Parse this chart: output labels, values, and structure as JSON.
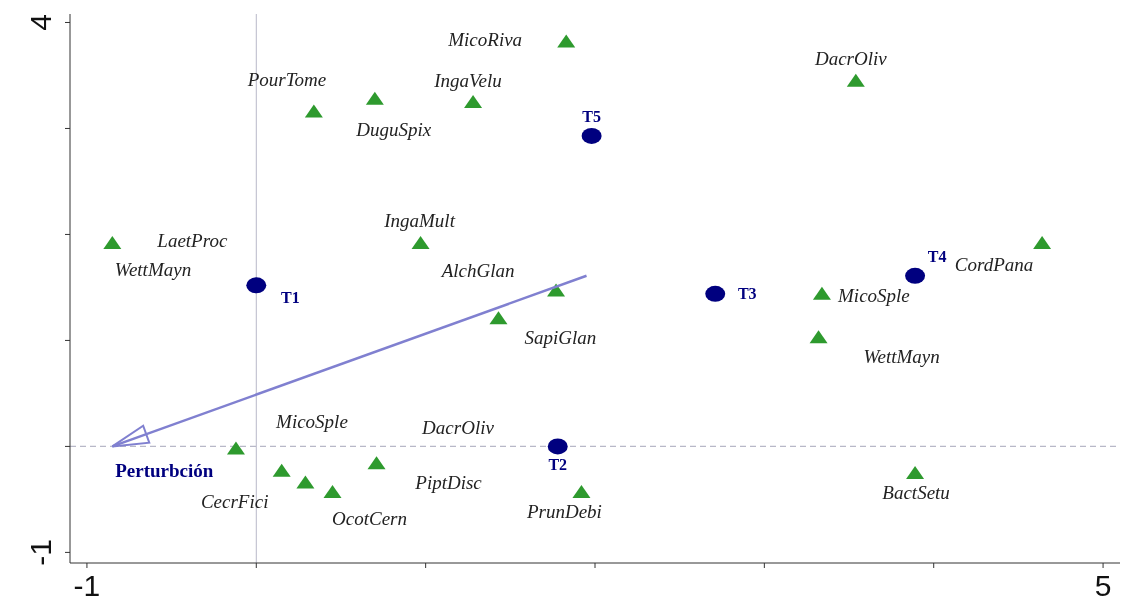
{
  "chart_data": {
    "type": "scatter",
    "xlim": [
      -1.1,
      5.1
    ],
    "ylim": [
      -1.1,
      4.08
    ],
    "xticks": [
      -1,
      {
        "value": 0,
        "label": null
      },
      {
        "value": 1,
        "label": null
      },
      {
        "value": 2,
        "label": null
      },
      {
        "value": 3,
        "label": null
      },
      {
        "value": 4,
        "label": null
      },
      5
    ],
    "yticks": [
      -1,
      {
        "value": 0,
        "label": null
      },
      {
        "value": 1,
        "label": null
      },
      {
        "value": 2,
        "label": null
      },
      {
        "value": 3,
        "label": null
      },
      4
    ],
    "ref_lines": [
      {
        "axis": "x",
        "value": 0,
        "color": "#b8b8c8",
        "line_style": "solid"
      },
      {
        "axis": "y",
        "value": 0,
        "color": "#b8b8c8",
        "line_style": "dashed"
      }
    ],
    "series": [
      {
        "marker": "triangle",
        "color": "#2e9a2e",
        "x": [
          1.83,
          3.54,
          0.34,
          0.7,
          1.28,
          -0.85,
          0.97,
          4.64,
          1.77,
          3.34,
          1.43,
          3.32,
          -0.12,
          0.15,
          0.29,
          0.45,
          0.71,
          1.92,
          3.89
        ],
        "values": [
          3.82,
          3.45,
          3.16,
          3.28,
          3.25,
          1.92,
          1.92,
          1.92,
          1.47,
          1.44,
          1.21,
          1.03,
          -0.02,
          -0.23,
          -0.34,
          -0.43,
          -0.16,
          -0.43,
          -0.25
        ],
        "value_labels": [
          "MicoRiva",
          "DacrOliv",
          "PourTome",
          "DuguSpix",
          "IngaVelu",
          "LaetProc",
          "IngaMult",
          "CordPana",
          "AlchGlan",
          "MicoSple",
          "SapiGlan",
          "WettMayn",
          "MicoSple",
          "CecrFici",
          null,
          "OcotCern",
          "PiptDisc",
          "PrunDebi",
          "BactSetu"
        ]
      },
      {
        "marker": "circle",
        "color": "#00007f",
        "x": [
          0,
          1.78,
          2.71,
          3.89,
          1.98
        ],
        "values": [
          1.52,
          0,
          1.44,
          1.61,
          2.93
        ],
        "value_labels": [
          "T1",
          "T2",
          "T3",
          "T4",
          "T5"
        ]
      },
      {
        "type": "line",
        "color": "#8080d0",
        "x": [
          1.95,
          -0.85
        ],
        "values": [
          1.61,
          0
        ],
        "value_labels": [
          null,
          "Perturbción"
        ]
      }
    ],
    "annotations": [
      "WettMayn",
      "DacrOliv"
    ]
  }
}
